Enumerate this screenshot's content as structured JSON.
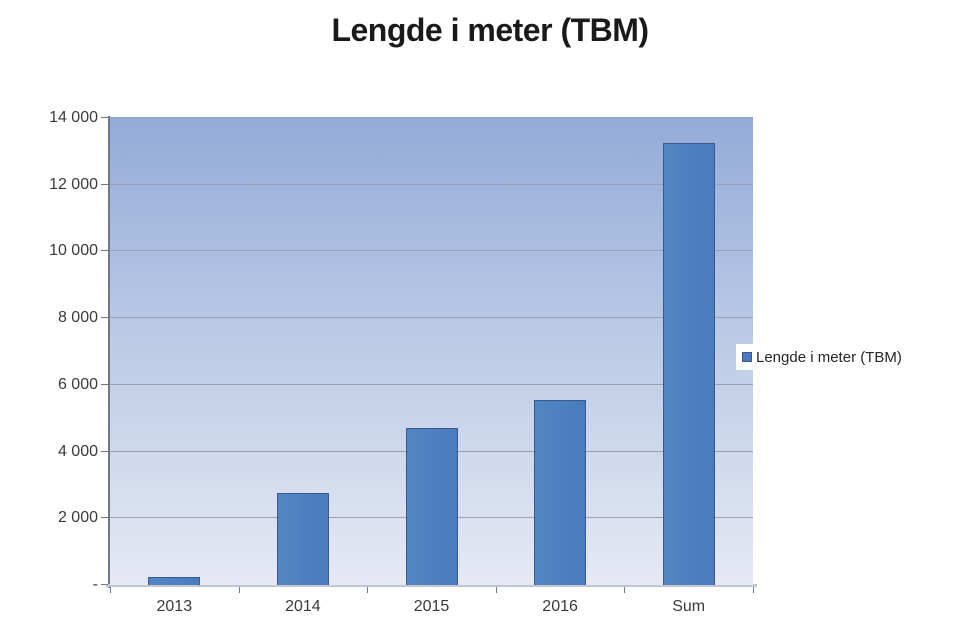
{
  "title": "Lengde i meter (TBM)",
  "legend": {
    "label": "Lengde i meter (TBM)"
  },
  "chart_data": {
    "type": "bar",
    "title": "Lengde i meter (TBM)",
    "categories": [
      "2013",
      "2014",
      "2015",
      "2016",
      "Sum"
    ],
    "series": [
      {
        "name": "Lengde i meter (TBM)",
        "values": [
          250,
          2750,
          4700,
          5550,
          13250
        ]
      }
    ],
    "xlabel": "",
    "ylabel": "",
    "ylim": [
      0,
      14000
    ],
    "ytick_interval": 2000,
    "ytick_labels": [
      "-",
      "2 000",
      "4 000",
      "6 000",
      "8 000",
      "10 000",
      "12 000",
      "14 000"
    ],
    "grid": true,
    "legend_position": "right",
    "plot_background": "gradient"
  },
  "colors": {
    "bar_fill": "#4a7cbd",
    "bar_border": "#38598c",
    "plot_top": "#93abd8",
    "plot_bottom": "#e6e9f4",
    "gridline": "#97a1b3",
    "axis_y": "#6f7885",
    "axis_x": "#c2c7d2",
    "text": "#3a3a3a",
    "title": "#1a1a1a"
  }
}
